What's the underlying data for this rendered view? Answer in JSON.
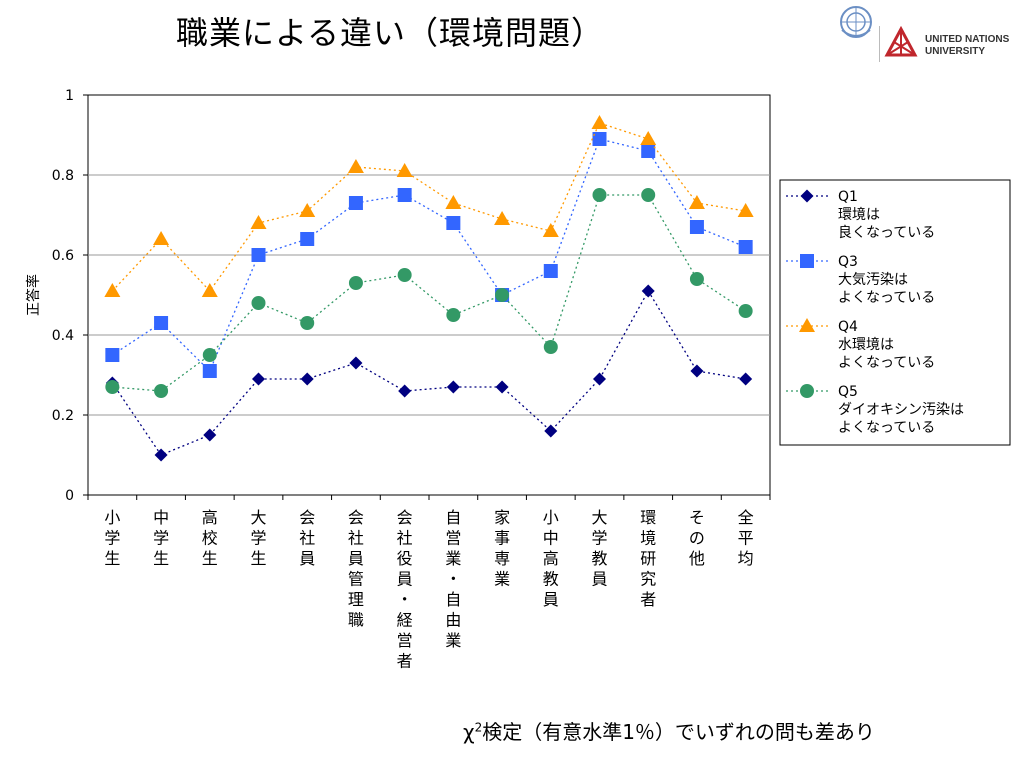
{
  "slide": {
    "title": "職業による違い（環境問題）",
    "logo_name": "UNITED NATIONS",
    "logo_name2": "UNIVERSITY",
    "footnote_chi": "χ",
    "footnote_sup": "2",
    "footnote_rest": "検定（有意水準1％）でいずれの問も差あり"
  },
  "chart_data": {
    "type": "line",
    "ylabel": "正答率",
    "ylim": [
      0,
      1
    ],
    "yticks": [
      "0",
      "0.2",
      "0.4",
      "0.6",
      "0.8",
      "1"
    ],
    "ytick_values": [
      0,
      0.2,
      0.4,
      0.6,
      0.8,
      1
    ],
    "grid": true,
    "legend_position": "right",
    "categories": [
      "小学生",
      "中学生",
      "高校生",
      "大学生",
      "会社員",
      "会社員管理職",
      "会社役員・経営者",
      "自営業・自由業",
      "家事専業",
      "小中高教員",
      "大学教員",
      "環境研究者",
      "その他",
      "全平均"
    ],
    "series": [
      {
        "name": "Q1",
        "desc": [
          "環境は",
          "良くなっている"
        ],
        "color": "#000080",
        "marker": "diamond",
        "values": [
          0.28,
          0.1,
          0.15,
          0.29,
          0.29,
          0.33,
          0.26,
          0.27,
          0.27,
          0.16,
          0.29,
          0.51,
          0.31,
          0.29
        ]
      },
      {
        "name": "Q3",
        "desc": [
          "大気汚染は",
          "よくなっている"
        ],
        "color": "#3366FF",
        "marker": "square",
        "values": [
          0.35,
          0.43,
          0.31,
          0.6,
          0.64,
          0.73,
          0.75,
          0.68,
          0.5,
          0.56,
          0.89,
          0.86,
          0.67,
          0.62
        ]
      },
      {
        "name": "Q4",
        "desc": [
          "水環境は",
          "よくなっている"
        ],
        "color": "#FF9900",
        "marker": "triangle",
        "values": [
          0.51,
          0.64,
          0.51,
          0.68,
          0.71,
          0.82,
          0.81,
          0.73,
          0.69,
          0.66,
          0.93,
          0.89,
          0.73,
          0.71
        ]
      },
      {
        "name": "Q5",
        "desc": [
          "ダイオキシン汚染は",
          "よくなっている"
        ],
        "color": "#339966",
        "marker": "circle",
        "values": [
          0.27,
          0.26,
          0.35,
          0.48,
          0.43,
          0.53,
          0.55,
          0.45,
          0.5,
          0.37,
          0.75,
          0.75,
          0.54,
          0.46
        ]
      }
    ]
  }
}
